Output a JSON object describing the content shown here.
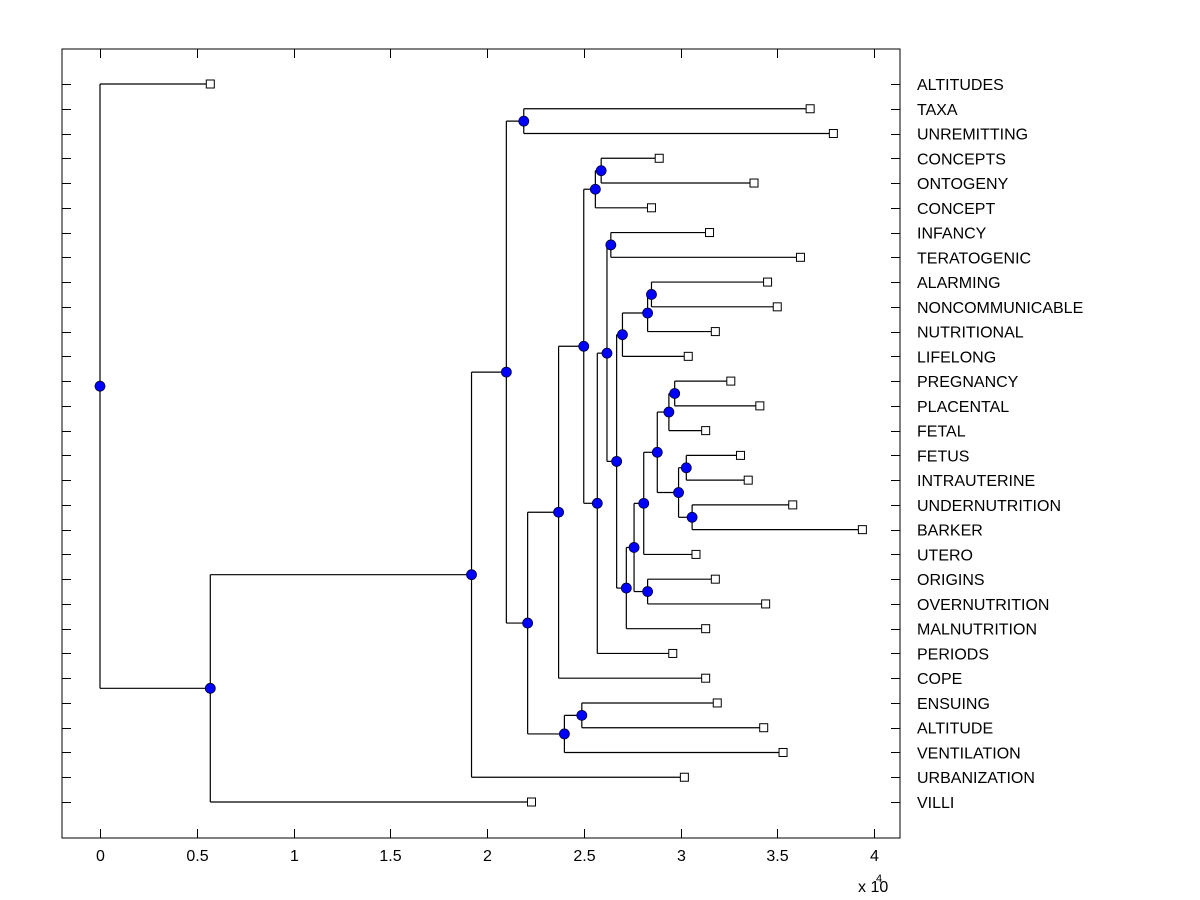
{
  "chart_data": {
    "type": "dendrogram",
    "title": "",
    "xlabel": "",
    "ylabel": "",
    "x_multiplier_label": "x 10",
    "x_multiplier_exponent": "4",
    "xlim": [
      -0.2,
      4.15
    ],
    "x_ticks": [
      0,
      0.5,
      1,
      1.5,
      2,
      2.5,
      3,
      3.5,
      4
    ],
    "x_tick_labels": [
      "0",
      "0.5",
      "1",
      "1.5",
      "2",
      "2.5",
      "3",
      "3.5",
      "4"
    ],
    "grid": false,
    "orientation": "left-to-right, labels on right axis",
    "colors": {
      "internal_node": "#0000ff",
      "leaf_marker": "#ffffff",
      "line": "#000000"
    },
    "leaves": [
      {
        "label": "ALTITUDES",
        "x": 0.57
      },
      {
        "label": "TAXA",
        "x": 3.67
      },
      {
        "label": "UNREMITTING",
        "x": 3.79
      },
      {
        "label": "CONCEPTS",
        "x": 2.89
      },
      {
        "label": "ONTOGENY",
        "x": 3.38
      },
      {
        "label": "CONCEPT",
        "x": 2.85
      },
      {
        "label": "INFANCY",
        "x": 3.15
      },
      {
        "label": "TERATOGENIC",
        "x": 3.62
      },
      {
        "label": "ALARMING",
        "x": 3.45
      },
      {
        "label": "NONCOMMUNICABLE",
        "x": 3.5
      },
      {
        "label": "NUTRITIONAL",
        "x": 3.18
      },
      {
        "label": "LIFELONG",
        "x": 3.04
      },
      {
        "label": "PREGNANCY",
        "x": 3.26
      },
      {
        "label": "PLACENTAL",
        "x": 3.41
      },
      {
        "label": "FETAL",
        "x": 3.13
      },
      {
        "label": "FETUS",
        "x": 3.31
      },
      {
        "label": "INTRAUTERINE",
        "x": 3.35
      },
      {
        "label": "UNDERNUTRITION",
        "x": 3.58
      },
      {
        "label": "BARKER",
        "x": 3.94
      },
      {
        "label": "UTERO",
        "x": 3.08
      },
      {
        "label": "ORIGINS",
        "x": 3.18
      },
      {
        "label": "OVERNUTRITION",
        "x": 3.44
      },
      {
        "label": "MALNUTRITION",
        "x": 3.13
      },
      {
        "label": "PERIODS",
        "x": 2.96
      },
      {
        "label": "COPE",
        "x": 3.13
      },
      {
        "label": "ENSUING",
        "x": 3.19
      },
      {
        "label": "ALTITUDE",
        "x": 3.43
      },
      {
        "label": "VENTILATION",
        "x": 3.53
      },
      {
        "label": "URBANIZATION",
        "x": 3.02
      },
      {
        "label": "VILLI",
        "x": 2.23
      }
    ],
    "nodes": [
      {
        "id": "n_root",
        "x": 0.0,
        "children": [
          "L0",
          "n_a"
        ]
      },
      {
        "id": "n_a",
        "x": 0.57,
        "children": [
          "n_b",
          "L29"
        ]
      },
      {
        "id": "n_b",
        "x": 1.92,
        "children": [
          "n_c",
          "L28"
        ]
      },
      {
        "id": "n_c",
        "x": 2.1,
        "children": [
          "n_taxa",
          "n_d"
        ]
      },
      {
        "id": "n_taxa",
        "x": 2.19,
        "children": [
          "L1",
          "L2"
        ]
      },
      {
        "id": "n_d",
        "x": 2.21,
        "children": [
          "n_e",
          "n_f"
        ]
      },
      {
        "id": "n_e",
        "x": 2.37,
        "children": [
          "n_g",
          "L24"
        ]
      },
      {
        "id": "n_f",
        "x": 2.4,
        "children": [
          "n_ens",
          "L27"
        ]
      },
      {
        "id": "n_ens",
        "x": 2.49,
        "children": [
          "L25",
          "L26"
        ]
      },
      {
        "id": "n_g",
        "x": 2.5,
        "children": [
          "n_h",
          "n_i"
        ]
      },
      {
        "id": "n_h",
        "x": 2.56,
        "children": [
          "n_con",
          "L5"
        ]
      },
      {
        "id": "n_con",
        "x": 2.59,
        "children": [
          "L3",
          "L4"
        ]
      },
      {
        "id": "n_i",
        "x": 2.57,
        "children": [
          "n_j",
          "L23"
        ]
      },
      {
        "id": "n_j",
        "x": 2.62,
        "children": [
          "n_inf",
          "n_k"
        ]
      },
      {
        "id": "n_inf",
        "x": 2.64,
        "children": [
          "L6",
          "L7"
        ]
      },
      {
        "id": "n_k",
        "x": 2.67,
        "children": [
          "n_l",
          "n_m"
        ]
      },
      {
        "id": "n_l",
        "x": 2.7,
        "children": [
          "n_n",
          "L11"
        ]
      },
      {
        "id": "n_n",
        "x": 2.83,
        "children": [
          "n_ala",
          "L10"
        ]
      },
      {
        "id": "n_ala",
        "x": 2.85,
        "children": [
          "L8",
          "L9"
        ]
      },
      {
        "id": "n_m",
        "x": 2.72,
        "children": [
          "n_o",
          "L22"
        ]
      },
      {
        "id": "n_o",
        "x": 2.76,
        "children": [
          "n_p",
          "n_ori"
        ]
      },
      {
        "id": "n_ori",
        "x": 2.83,
        "children": [
          "L20",
          "L21"
        ]
      },
      {
        "id": "n_p",
        "x": 2.81,
        "children": [
          "n_q",
          "L19"
        ]
      },
      {
        "id": "n_q",
        "x": 2.88,
        "children": [
          "n_r",
          "n_s"
        ]
      },
      {
        "id": "n_r",
        "x": 2.94,
        "children": [
          "n_preg",
          "L14"
        ]
      },
      {
        "id": "n_preg",
        "x": 2.97,
        "children": [
          "L12",
          "L13"
        ]
      },
      {
        "id": "n_s",
        "x": 2.99,
        "children": [
          "n_fet",
          "n_und"
        ]
      },
      {
        "id": "n_fet",
        "x": 3.03,
        "children": [
          "L15",
          "L16"
        ]
      },
      {
        "id": "n_und",
        "x": 3.06,
        "children": [
          "L17",
          "L18"
        ]
      }
    ],
    "root": "n_root"
  }
}
